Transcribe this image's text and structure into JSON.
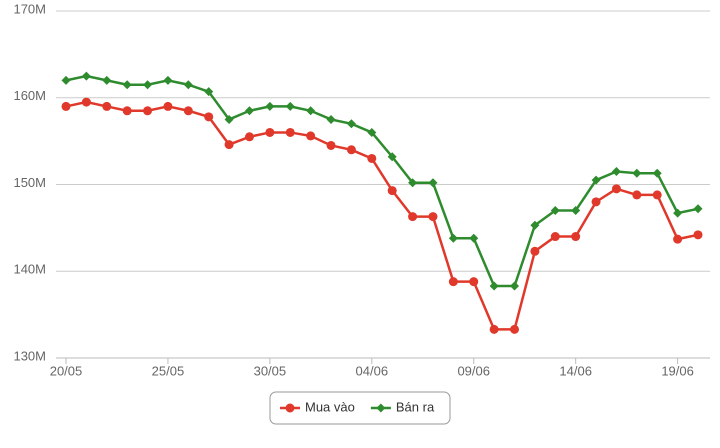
{
  "chart_data": {
    "type": "line",
    "categories": [
      "20/05",
      null,
      null,
      null,
      null,
      "25/05",
      null,
      null,
      null,
      null,
      "30/05",
      null,
      null,
      null,
      null,
      "04/06",
      null,
      null,
      null,
      null,
      "09/06",
      null,
      null,
      null,
      null,
      "14/06",
      null,
      null,
      null,
      null,
      "19/06",
      null
    ],
    "series": [
      {
        "name": "Mua vào",
        "color": "#e0392b",
        "marker": "circle",
        "values": [
          159.0,
          159.5,
          159.0,
          158.5,
          158.5,
          159.0,
          158.5,
          157.8,
          154.6,
          155.5,
          156.0,
          156.0,
          155.6,
          154.5,
          154.0,
          153.0,
          149.3,
          146.3,
          146.3,
          138.8,
          138.8,
          133.3,
          133.3,
          142.3,
          144.0,
          144.0,
          148.0,
          149.5,
          148.8,
          148.8,
          143.7,
          144.2
        ]
      },
      {
        "name": "Bán ra",
        "color": "#2e8b2e",
        "marker": "diamond",
        "values": [
          162.0,
          162.5,
          162.0,
          161.5,
          161.5,
          162.0,
          161.5,
          160.7,
          157.5,
          158.5,
          159.0,
          159.0,
          158.5,
          157.5,
          157.0,
          156.0,
          153.2,
          150.2,
          150.2,
          143.8,
          143.8,
          138.3,
          138.3,
          145.3,
          147.0,
          147.0,
          150.5,
          151.5,
          151.3,
          151.3,
          146.7,
          147.2
        ]
      }
    ],
    "ylim": [
      130,
      170
    ],
    "yticks": [
      {
        "value": 130,
        "label": "130M"
      },
      {
        "value": 140,
        "label": "140M"
      },
      {
        "value": 150,
        "label": "150M"
      },
      {
        "value": 160,
        "label": "160M"
      },
      {
        "value": 170,
        "label": "170M"
      }
    ],
    "grid": true,
    "legend": "bottom"
  }
}
